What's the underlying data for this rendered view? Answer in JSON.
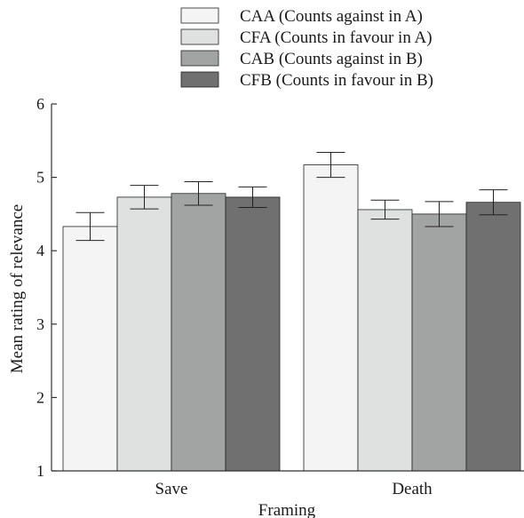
{
  "chart_data": {
    "type": "bar",
    "categories": [
      "Save",
      "Death"
    ],
    "series": [
      {
        "name": "CAA (Counts against in A)",
        "values": [
          4.33,
          5.17
        ],
        "error": [
          0.19,
          0.17
        ],
        "color": "#f4f4f4"
      },
      {
        "name": "CFA (Counts in favour in A)",
        "values": [
          4.73,
          4.56
        ],
        "error": [
          0.16,
          0.13
        ],
        "color": "#dfe1e1"
      },
      {
        "name": "CAB (Counts against in B)",
        "values": [
          4.78,
          4.5
        ],
        "error": [
          0.16,
          0.17
        ],
        "color": "#a2a4a3"
      },
      {
        "name": "CFB (Counts in favour in B)",
        "values": [
          4.73,
          4.66
        ],
        "error": [
          0.14,
          0.17
        ],
        "color": "#707070"
      }
    ],
    "xlabel": "Framing",
    "ylabel": "Mean rating of relevance",
    "ylim": [
      1,
      6
    ],
    "yticks": [
      "1",
      "2",
      "3",
      "4",
      "5",
      "6"
    ],
    "grid": false,
    "legend_position": "top"
  }
}
